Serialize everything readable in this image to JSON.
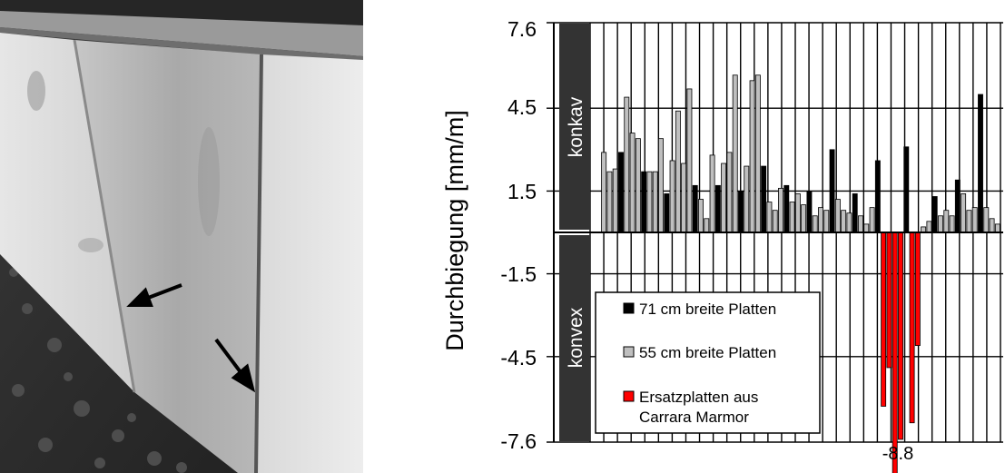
{
  "photo": {
    "description_icon": "marble-facade-photo",
    "arrows": [
      "arrow-icon",
      "arrow-icon"
    ]
  },
  "chart_data": {
    "type": "bar",
    "ylabel": "Durchbiegung [mm/m]",
    "yticks": [
      "7.6",
      "4.5",
      "1.5",
      "-1.5",
      "-4.5",
      "-7.6"
    ],
    "ylim": [
      -7.6,
      7.6
    ],
    "grid": true,
    "region_labels": {
      "top": "konkav",
      "bottom": "konvex"
    },
    "annotation": "-8.8",
    "legend": {
      "placement": "bottom-left",
      "entries": [
        {
          "label": "71 cm breite Platten",
          "color": "#000000"
        },
        {
          "label": "55 cm breite Platten",
          "color": "#bfbfbf"
        },
        {
          "label": "Ersatzplatten aus",
          "label2": "Carrara Marmor",
          "color": "#ff0000"
        }
      ]
    },
    "colors": {
      "black": "#000000",
      "gray": "#bfbfbf",
      "red": "#ff0000"
    },
    "bars": [
      {
        "v": 2.9,
        "c": "gray"
      },
      {
        "v": 2.2,
        "c": "gray"
      },
      {
        "v": 2.3,
        "c": "gray"
      },
      {
        "v": 2.9,
        "c": "black"
      },
      {
        "v": 4.9,
        "c": "gray"
      },
      {
        "v": 3.6,
        "c": "gray"
      },
      {
        "v": 3.4,
        "c": "gray"
      },
      {
        "v": 2.2,
        "c": "black"
      },
      {
        "v": 2.2,
        "c": "gray"
      },
      {
        "v": 2.2,
        "c": "gray"
      },
      {
        "v": 3.4,
        "c": "gray"
      },
      {
        "v": 1.4,
        "c": "black"
      },
      {
        "v": 2.6,
        "c": "gray"
      },
      {
        "v": 4.4,
        "c": "gray"
      },
      {
        "v": 2.5,
        "c": "gray"
      },
      {
        "v": 5.2,
        "c": "gray"
      },
      {
        "v": 1.7,
        "c": "black"
      },
      {
        "v": 1.2,
        "c": "gray"
      },
      {
        "v": 0.5,
        "c": "gray"
      },
      {
        "v": 2.8,
        "c": "gray"
      },
      {
        "v": 1.7,
        "c": "black"
      },
      {
        "v": 2.5,
        "c": "gray"
      },
      {
        "v": 2.9,
        "c": "gray"
      },
      {
        "v": 5.7,
        "c": "gray"
      },
      {
        "v": 1.5,
        "c": "black"
      },
      {
        "v": 2.4,
        "c": "gray"
      },
      {
        "v": 5.5,
        "c": "gray"
      },
      {
        "v": 5.7,
        "c": "gray"
      },
      {
        "v": 2.4,
        "c": "black"
      },
      {
        "v": 1.1,
        "c": "gray"
      },
      {
        "v": 0.8,
        "c": "gray"
      },
      {
        "v": 1.6,
        "c": "gray"
      },
      {
        "v": 1.7,
        "c": "black"
      },
      {
        "v": 1.1,
        "c": "gray"
      },
      {
        "v": 1.4,
        "c": "gray"
      },
      {
        "v": 1.0,
        "c": "gray"
      },
      {
        "v": 1.5,
        "c": "black"
      },
      {
        "v": 0.6,
        "c": "gray"
      },
      {
        "v": 0.9,
        "c": "gray"
      },
      {
        "v": 0.8,
        "c": "gray"
      },
      {
        "v": 3.0,
        "c": "black"
      },
      {
        "v": 1.2,
        "c": "gray"
      },
      {
        "v": 0.8,
        "c": "gray"
      },
      {
        "v": 0.7,
        "c": "gray"
      },
      {
        "v": 1.4,
        "c": "black"
      },
      {
        "v": 0.6,
        "c": "gray"
      },
      {
        "v": 0.3,
        "c": "gray"
      },
      {
        "v": 0.9,
        "c": "gray"
      },
      {
        "v": 2.6,
        "c": "black"
      },
      {
        "v": -6.3,
        "c": "red"
      },
      {
        "v": -4.9,
        "c": "red"
      },
      {
        "v": -8.8,
        "c": "red"
      },
      {
        "v": -7.5,
        "c": "red"
      },
      {
        "v": 3.1,
        "c": "black"
      },
      {
        "v": -6.9,
        "c": "red"
      },
      {
        "v": -4.1,
        "c": "red"
      },
      {
        "v": 0.2,
        "c": "gray"
      },
      {
        "v": 0.4,
        "c": "gray"
      },
      {
        "v": 1.3,
        "c": "black"
      },
      {
        "v": 0.6,
        "c": "gray"
      },
      {
        "v": 0.8,
        "c": "gray"
      },
      {
        "v": 0.6,
        "c": "gray"
      },
      {
        "v": 1.9,
        "c": "black"
      },
      {
        "v": 1.4,
        "c": "gray"
      },
      {
        "v": 0.8,
        "c": "gray"
      },
      {
        "v": 0.9,
        "c": "gray"
      },
      {
        "v": 5.0,
        "c": "black"
      },
      {
        "v": 0.9,
        "c": "gray"
      },
      {
        "v": 0.5,
        "c": "gray"
      },
      {
        "v": 0.3,
        "c": "gray"
      }
    ]
  }
}
